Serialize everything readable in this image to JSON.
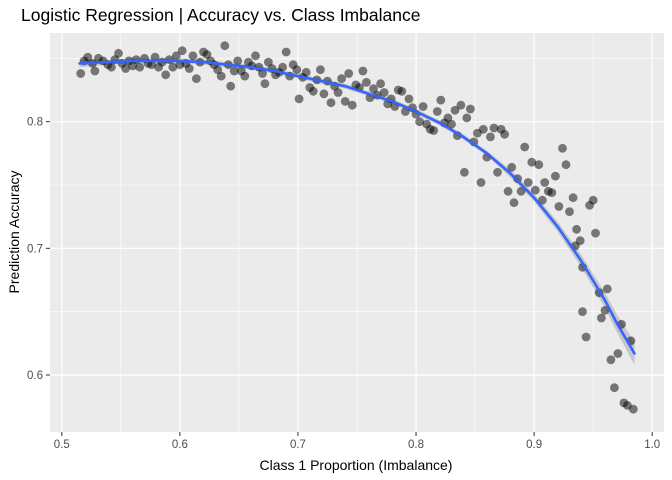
{
  "chart_data": {
    "type": "scatter",
    "title": "Logistic Regression | Accuracy vs. Class Imbalance",
    "xlabel": "Class 1 Proportion (Imbalance)",
    "ylabel": "Prediction Accuracy",
    "xlim": [
      0.49,
      1.01
    ],
    "ylim": [
      0.555,
      0.87
    ],
    "x_ticks": [
      0.5,
      0.6,
      0.7,
      0.8,
      0.9,
      1.0
    ],
    "x_tick_labels": [
      "0.5",
      "0.6",
      "0.7",
      "0.8",
      "0.9",
      "1.0"
    ],
    "y_ticks": [
      0.6,
      0.7,
      0.8
    ],
    "y_tick_labels": [
      "0.6",
      "0.7",
      "0.8"
    ],
    "grid": true,
    "colors": {
      "panel_background": "#ebebeb",
      "grid_major": "#ffffff",
      "points": "#000000",
      "smooth_line": "#3366ff",
      "confidence_band": "#999999"
    },
    "points": [
      [
        0.516,
        0.838
      ],
      [
        0.519,
        0.848
      ],
      [
        0.522,
        0.851
      ],
      [
        0.526,
        0.846
      ],
      [
        0.528,
        0.84
      ],
      [
        0.531,
        0.85
      ],
      [
        0.535,
        0.848
      ],
      [
        0.539,
        0.845
      ],
      [
        0.542,
        0.843
      ],
      [
        0.545,
        0.849
      ],
      [
        0.548,
        0.854
      ],
      [
        0.551,
        0.846
      ],
      [
        0.554,
        0.842
      ],
      [
        0.557,
        0.848
      ],
      [
        0.56,
        0.844
      ],
      [
        0.563,
        0.849
      ],
      [
        0.566,
        0.843
      ],
      [
        0.57,
        0.85
      ],
      [
        0.573,
        0.846
      ],
      [
        0.576,
        0.845
      ],
      [
        0.579,
        0.851
      ],
      [
        0.582,
        0.843
      ],
      [
        0.585,
        0.847
      ],
      [
        0.588,
        0.837
      ],
      [
        0.591,
        0.849
      ],
      [
        0.594,
        0.843
      ],
      [
        0.597,
        0.852
      ],
      [
        0.6,
        0.845
      ],
      [
        0.602,
        0.856
      ],
      [
        0.605,
        0.846
      ],
      [
        0.608,
        0.842
      ],
      [
        0.611,
        0.852
      ],
      [
        0.614,
        0.834
      ],
      [
        0.617,
        0.847
      ],
      [
        0.62,
        0.855
      ],
      [
        0.623,
        0.853
      ],
      [
        0.626,
        0.848
      ],
      [
        0.629,
        0.845
      ],
      [
        0.632,
        0.841
      ],
      [
        0.635,
        0.836
      ],
      [
        0.638,
        0.86
      ],
      [
        0.641,
        0.845
      ],
      [
        0.643,
        0.828
      ],
      [
        0.646,
        0.84
      ],
      [
        0.649,
        0.848
      ],
      [
        0.652,
        0.84
      ],
      [
        0.655,
        0.836
      ],
      [
        0.658,
        0.847
      ],
      [
        0.661,
        0.844
      ],
      [
        0.664,
        0.852
      ],
      [
        0.667,
        0.843
      ],
      [
        0.67,
        0.838
      ],
      [
        0.672,
        0.83
      ],
      [
        0.675,
        0.847
      ],
      [
        0.678,
        0.842
      ],
      [
        0.681,
        0.837
      ],
      [
        0.684,
        0.839
      ],
      [
        0.687,
        0.843
      ],
      [
        0.69,
        0.855
      ],
      [
        0.693,
        0.836
      ],
      [
        0.696,
        0.845
      ],
      [
        0.699,
        0.841
      ],
      [
        0.701,
        0.818
      ],
      [
        0.704,
        0.835
      ],
      [
        0.707,
        0.839
      ],
      [
        0.71,
        0.827
      ],
      [
        0.713,
        0.824
      ],
      [
        0.716,
        0.833
      ],
      [
        0.719,
        0.841
      ],
      [
        0.722,
        0.822
      ],
      [
        0.725,
        0.832
      ],
      [
        0.728,
        0.815
      ],
      [
        0.731,
        0.828
      ],
      [
        0.734,
        0.823
      ],
      [
        0.737,
        0.834
      ],
      [
        0.74,
        0.816
      ],
      [
        0.743,
        0.838
      ],
      [
        0.746,
        0.813
      ],
      [
        0.749,
        0.829
      ],
      [
        0.752,
        0.827
      ],
      [
        0.755,
        0.84
      ],
      [
        0.758,
        0.831
      ],
      [
        0.761,
        0.819
      ],
      [
        0.764,
        0.826
      ],
      [
        0.767,
        0.821
      ],
      [
        0.77,
        0.83
      ],
      [
        0.773,
        0.823
      ],
      [
        0.776,
        0.814
      ],
      [
        0.779,
        0.818
      ],
      [
        0.782,
        0.812
      ],
      [
        0.785,
        0.825
      ],
      [
        0.788,
        0.824
      ],
      [
        0.791,
        0.808
      ],
      [
        0.794,
        0.818
      ],
      [
        0.797,
        0.811
      ],
      [
        0.8,
        0.806
      ],
      [
        0.803,
        0.8
      ],
      [
        0.806,
        0.812
      ],
      [
        0.809,
        0.798
      ],
      [
        0.812,
        0.794
      ],
      [
        0.815,
        0.793
      ],
      [
        0.818,
        0.808
      ],
      [
        0.821,
        0.817
      ],
      [
        0.824,
        0.799
      ],
      [
        0.827,
        0.803
      ],
      [
        0.83,
        0.798
      ],
      [
        0.833,
        0.809
      ],
      [
        0.835,
        0.789
      ],
      [
        0.838,
        0.813
      ],
      [
        0.841,
        0.76
      ],
      [
        0.843,
        0.803
      ],
      [
        0.846,
        0.81
      ],
      [
        0.849,
        0.784
      ],
      [
        0.852,
        0.791
      ],
      [
        0.855,
        0.752
      ],
      [
        0.857,
        0.794
      ],
      [
        0.86,
        0.772
      ],
      [
        0.863,
        0.788
      ],
      [
        0.866,
        0.795
      ],
      [
        0.869,
        0.76
      ],
      [
        0.872,
        0.794
      ],
      [
        0.875,
        0.79
      ],
      [
        0.878,
        0.745
      ],
      [
        0.881,
        0.764
      ],
      [
        0.883,
        0.736
      ],
      [
        0.886,
        0.755
      ],
      [
        0.889,
        0.745
      ],
      [
        0.892,
        0.78
      ],
      [
        0.895,
        0.752
      ],
      [
        0.898,
        0.768
      ],
      [
        0.901,
        0.746
      ],
      [
        0.904,
        0.766
      ],
      [
        0.907,
        0.738
      ],
      [
        0.909,
        0.752
      ],
      [
        0.912,
        0.745
      ],
      [
        0.915,
        0.744
      ],
      [
        0.918,
        0.757
      ],
      [
        0.921,
        0.733
      ],
      [
        0.924,
        0.779
      ],
      [
        0.927,
        0.766
      ],
      [
        0.93,
        0.729
      ],
      [
        0.933,
        0.74
      ],
      [
        0.936,
        0.715
      ],
      [
        0.939,
        0.706
      ],
      [
        0.941,
        0.685
      ],
      [
        0.944,
        0.63
      ],
      [
        0.947,
        0.734
      ],
      [
        0.95,
        0.738
      ],
      [
        0.952,
        0.712
      ],
      [
        0.955,
        0.665
      ],
      [
        0.957,
        0.645
      ],
      [
        0.96,
        0.651
      ],
      [
        0.962,
        0.668
      ],
      [
        0.965,
        0.612
      ],
      [
        0.968,
        0.59
      ],
      [
        0.971,
        0.617
      ],
      [
        0.974,
        0.64
      ],
      [
        0.976,
        0.578
      ],
      [
        0.979,
        0.576
      ],
      [
        0.982,
        0.627
      ],
      [
        0.984,
        0.573
      ],
      [
        0.941,
        0.65
      ],
      [
        0.935,
        0.702
      ]
    ],
    "smooth_x": [
      0.515,
      0.54,
      0.56,
      0.58,
      0.6,
      0.62,
      0.64,
      0.66,
      0.68,
      0.7,
      0.72,
      0.74,
      0.76,
      0.78,
      0.8,
      0.82,
      0.84,
      0.86,
      0.88,
      0.9,
      0.92,
      0.94,
      0.96,
      0.97,
      0.985
    ],
    "smooth_y": [
      0.846,
      0.847,
      0.848,
      0.848,
      0.848,
      0.847,
      0.845,
      0.843,
      0.84,
      0.836,
      0.832,
      0.828,
      0.822,
      0.816,
      0.808,
      0.799,
      0.788,
      0.775,
      0.759,
      0.74,
      0.717,
      0.69,
      0.659,
      0.641,
      0.617
    ],
    "band_halfwidth": [
      0.003,
      0.002,
      0.002,
      0.002,
      0.002,
      0.002,
      0.002,
      0.002,
      0.002,
      0.002,
      0.002,
      0.002,
      0.002,
      0.002,
      0.002,
      0.002,
      0.002,
      0.002,
      0.003,
      0.003,
      0.004,
      0.005,
      0.006,
      0.007,
      0.009
    ]
  }
}
